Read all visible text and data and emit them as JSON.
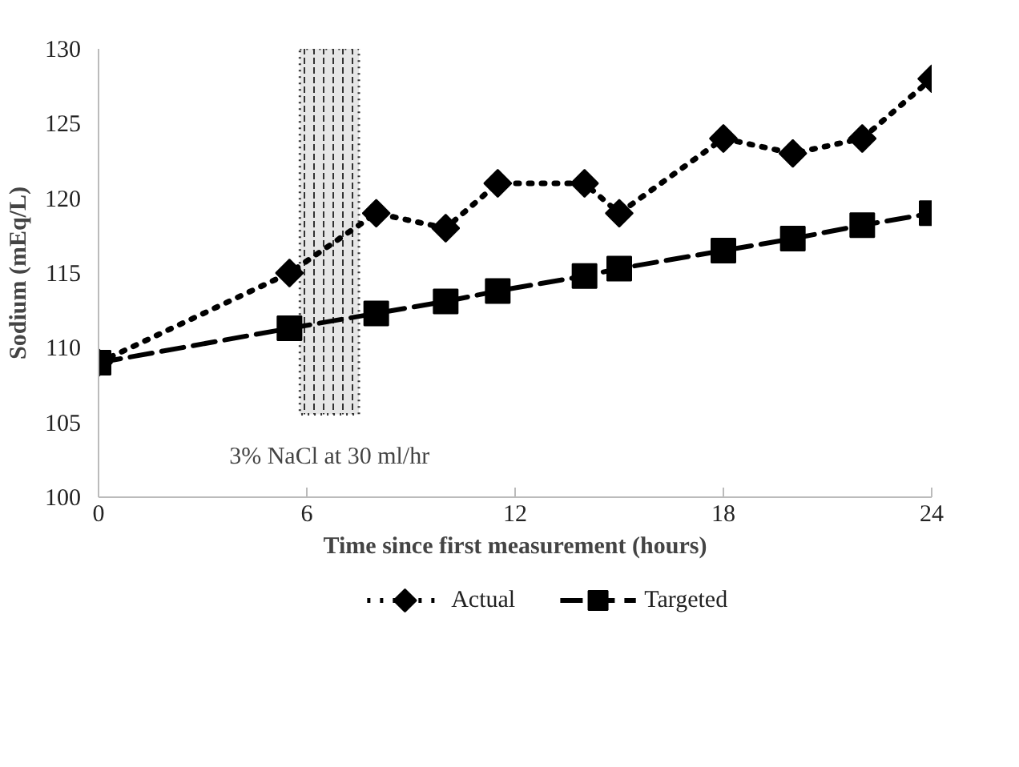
{
  "chart_data": {
    "type": "line",
    "xlabel": "Time since first measurement (hours)",
    "ylabel": "Sodium (mEq/L)",
    "xlim": [
      0,
      24
    ],
    "xticks": [
      0,
      6,
      12,
      18,
      24
    ],
    "ylim": [
      100,
      130
    ],
    "yticks": [
      100,
      105,
      110,
      115,
      120,
      125,
      130
    ],
    "series": [
      {
        "name": "Actual",
        "color": "#000000",
        "x": [
          0,
          5.5,
          8,
          10,
          11.5,
          14,
          15,
          18,
          20,
          22,
          24
        ],
        "values": [
          109,
          115,
          119,
          118,
          121,
          121,
          119,
          124,
          123,
          124,
          128
        ],
        "marker": "diamond",
        "line_style": "dotted"
      },
      {
        "name": "Targeted",
        "color": "#000000",
        "x": [
          0,
          5.5,
          8,
          10,
          11.5,
          14,
          15,
          18,
          20,
          22,
          24
        ],
        "values": [
          109,
          111.3,
          112.3,
          113.1,
          113.8,
          114.8,
          115.3,
          116.5,
          117.3,
          118.2,
          119
        ],
        "marker": "square",
        "line_style": "dashed"
      }
    ],
    "bands": [
      {
        "axis": "x",
        "from": 5.8,
        "to": 7.5,
        "label": "3% NaCl at 30 ml/hr",
        "color": "#333333"
      }
    ],
    "grid": false,
    "legend": "bottom"
  }
}
